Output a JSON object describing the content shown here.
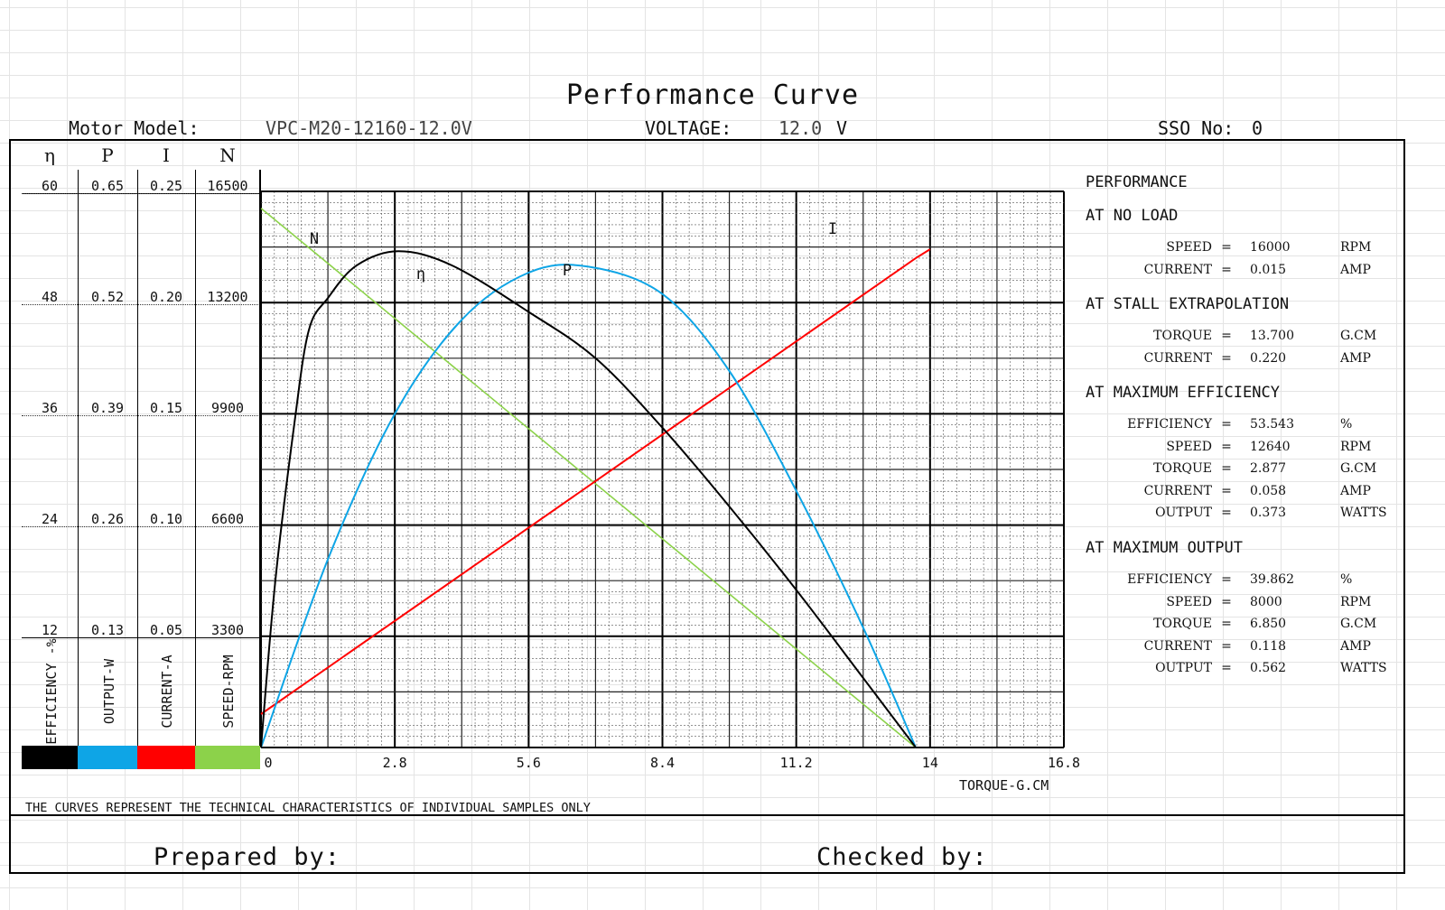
{
  "header": {
    "title": "Performance Curve",
    "motor_model_label": "Motor Model:",
    "motor_model": "VPC-M20-12160-12.0V",
    "voltage_label": "VOLTAGE:",
    "voltage": "12.0",
    "voltage_unit": "V",
    "sso_label": "SSO No:",
    "sso": "0"
  },
  "scales": {
    "headers": [
      "η",
      "P",
      "I",
      "N"
    ],
    "rows": [
      [
        "60",
        "0.65",
        "0.25",
        "16500"
      ],
      [
        "48",
        "0.52",
        "0.20",
        "13200"
      ],
      [
        "36",
        "0.39",
        "0.15",
        "9900"
      ],
      [
        "24",
        "0.26",
        "0.10",
        "6600"
      ],
      [
        "12",
        "0.13",
        "0.05",
        "3300"
      ]
    ],
    "axis_titles": [
      "EFFICIENCY -%",
      "OUTPUT-W",
      "CURRENT-A",
      "SPEED-RPM"
    ],
    "legend_colors": [
      "#000000",
      "#0ea5e6",
      "#ff0000",
      "#8cd24a"
    ]
  },
  "performance": {
    "title": "PERFORMANCE",
    "sections": [
      {
        "heading": "AT NO LOAD",
        "rows": [
          {
            "label": "SPEED",
            "eq": "=",
            "value": "16000",
            "unit": "RPM"
          },
          {
            "label": "CURRENT",
            "eq": "=",
            "value": "0.015",
            "unit": "AMP"
          }
        ]
      },
      {
        "heading": "AT STALL EXTRAPOLATION",
        "rows": [
          {
            "label": "TORQUE",
            "eq": "=",
            "value": "13.700",
            "unit": "G.CM"
          },
          {
            "label": "CURRENT",
            "eq": "=",
            "value": "0.220",
            "unit": "AMP"
          }
        ]
      },
      {
        "heading": "AT MAXIMUM EFFICIENCY",
        "rows": [
          {
            "label": "EFFICIENCY",
            "eq": "=",
            "value": "53.543",
            "unit": "%"
          },
          {
            "label": "SPEED",
            "eq": "=",
            "value": "12640",
            "unit": "RPM"
          },
          {
            "label": "TORQUE",
            "eq": "=",
            "value": "2.877",
            "unit": "G.CM"
          },
          {
            "label": "CURRENT",
            "eq": "=",
            "value": "0.058",
            "unit": "AMP"
          },
          {
            "label": "OUTPUT",
            "eq": "=",
            "value": "0.373",
            "unit": "WATTS"
          }
        ]
      },
      {
        "heading": "AT MAXIMUM OUTPUT",
        "rows": [
          {
            "label": "EFFICIENCY",
            "eq": "=",
            "value": "39.862",
            "unit": "%"
          },
          {
            "label": "SPEED",
            "eq": "=",
            "value": "8000",
            "unit": "RPM"
          },
          {
            "label": "TORQUE",
            "eq": "=",
            "value": "6.850",
            "unit": "G.CM"
          },
          {
            "label": "CURRENT",
            "eq": "=",
            "value": "0.118",
            "unit": "AMP"
          },
          {
            "label": "OUTPUT",
            "eq": "=",
            "value": "0.562",
            "unit": "WATTS"
          }
        ]
      }
    ]
  },
  "footer": {
    "note": "THE CURVES REPRESENT THE TECHNICAL CHARACTERISTICS OF INDIVIDUAL SAMPLES ONLY",
    "prepared_by": "Prepared by:",
    "checked_by": "Checked by:"
  },
  "chart_data": {
    "type": "line",
    "xlabel": "TORQUE-G.CM",
    "xlim": [
      0,
      16.8
    ],
    "x_ticks": [
      "0",
      "2.8",
      "5.6",
      "8.4",
      "11.2",
      "14",
      "16.8"
    ],
    "series": [
      {
        "name": "N",
        "color": "#8cd24a",
        "axis": "speed_rpm",
        "ylim": [
          0,
          16500
        ],
        "points": [
          [
            0,
            16000
          ],
          [
            13.7,
            0
          ]
        ]
      },
      {
        "name": "I",
        "color": "#ff0000",
        "axis": "current_a",
        "ylim": [
          0,
          0.25
        ],
        "points": [
          [
            0,
            0.015
          ],
          [
            13.7,
            0.22
          ],
          [
            14,
            0.224
          ]
        ]
      },
      {
        "name": "P",
        "color": "#0ea5e6",
        "axis": "output_w",
        "ylim": [
          0,
          0.65
        ],
        "points": [
          [
            0,
            0
          ],
          [
            1.4,
            0.22
          ],
          [
            2.8,
            0.39
          ],
          [
            4.2,
            0.5
          ],
          [
            5.6,
            0.555
          ],
          [
            6.85,
            0.562
          ],
          [
            8.4,
            0.53
          ],
          [
            9.8,
            0.44
          ],
          [
            11.2,
            0.3
          ],
          [
            12.6,
            0.14
          ],
          [
            13.7,
            0
          ]
        ]
      },
      {
        "name": "η",
        "color": "#000000",
        "axis": "efficiency_pct",
        "ylim": [
          0,
          60
        ],
        "points": [
          [
            0,
            0
          ],
          [
            0.3,
            18
          ],
          [
            0.7,
            35
          ],
          [
            1.0,
            45
          ],
          [
            1.4,
            48.5
          ],
          [
            2.0,
            52
          ],
          [
            2.877,
            53.543
          ],
          [
            4.0,
            52
          ],
          [
            5.6,
            47
          ],
          [
            7.0,
            42
          ],
          [
            8.4,
            34.5
          ],
          [
            9.8,
            26
          ],
          [
            11.2,
            17
          ],
          [
            12.6,
            7.5
          ],
          [
            13.7,
            0
          ]
        ]
      }
    ],
    "curve_labels": [
      "N",
      "η",
      "P",
      "I"
    ]
  }
}
